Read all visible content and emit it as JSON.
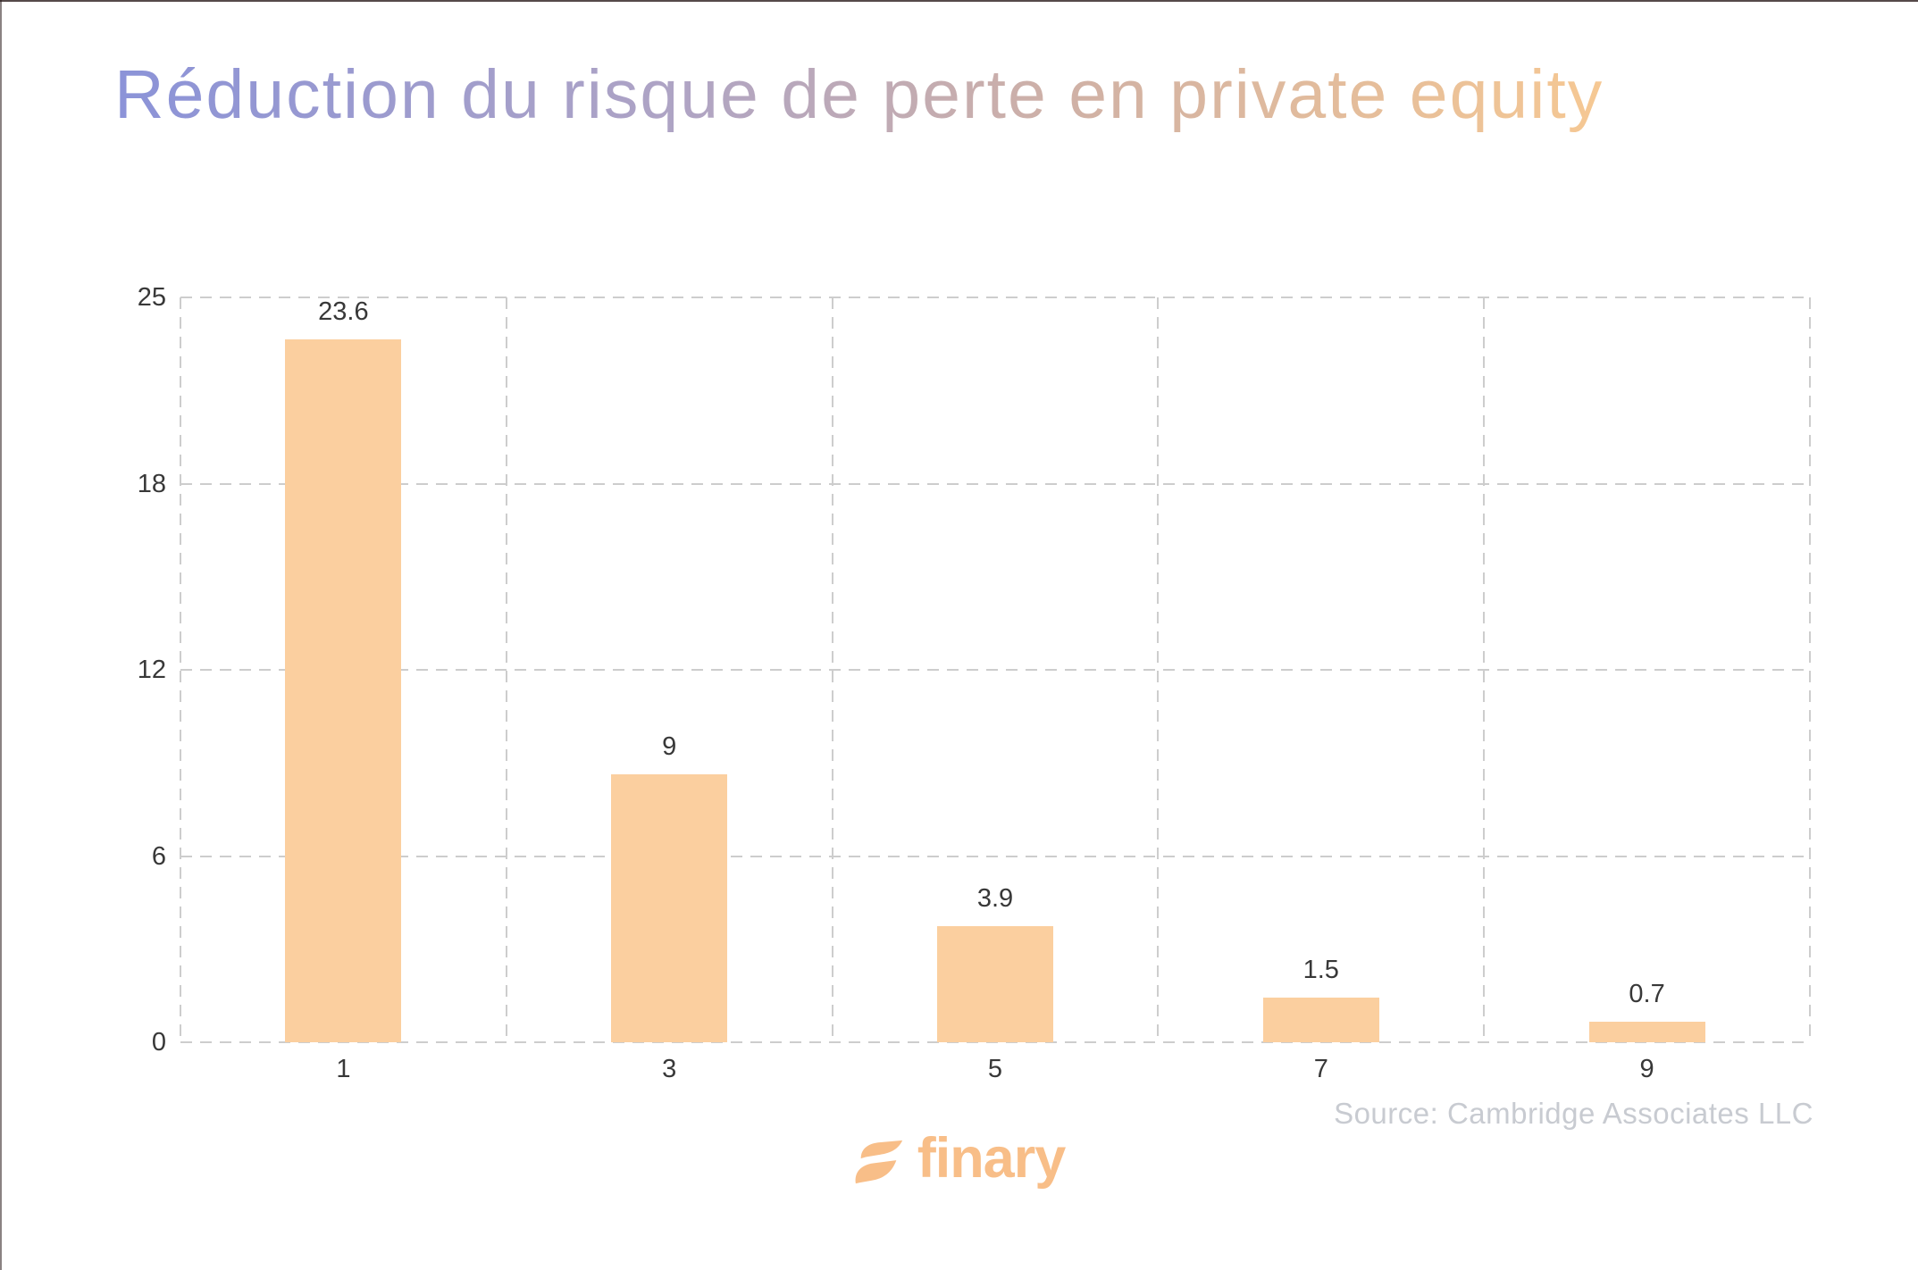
{
  "page": {
    "title": "Réduction du risque de perte en private equity",
    "source": "Source: Cambridge Associates LLC",
    "brand": {
      "name": "finary"
    },
    "colors": {
      "bar": "#FBCF9F",
      "grid": "#CDCDCD",
      "tick_text": "#383838",
      "source_text": "#C8CBD1",
      "brand_orange": "#F8BE88",
      "title_gradient": [
        "#8B93D8",
        "#AFA4C4",
        "#D2B2A4",
        "#F6C893"
      ]
    }
  },
  "chart_data": {
    "type": "bar",
    "title": "Réduction du risque de perte en private equity",
    "categories": [
      "1",
      "3",
      "5",
      "7",
      "9"
    ],
    "values": [
      23.6,
      9,
      3.9,
      1.5,
      0.7
    ],
    "value_labels": [
      "23.6",
      "9",
      "3.9",
      "1.5",
      "0.7"
    ],
    "xlabel": "",
    "ylabel": "",
    "ylim": [
      0,
      25
    ],
    "y_ticks": [
      0,
      6,
      12,
      18,
      25
    ],
    "y_tick_spacing": "equal",
    "grid": "dashed-box",
    "legend": "none",
    "bar_color": "#FBCF9F",
    "source": "Source: Cambridge Associates LLC"
  }
}
